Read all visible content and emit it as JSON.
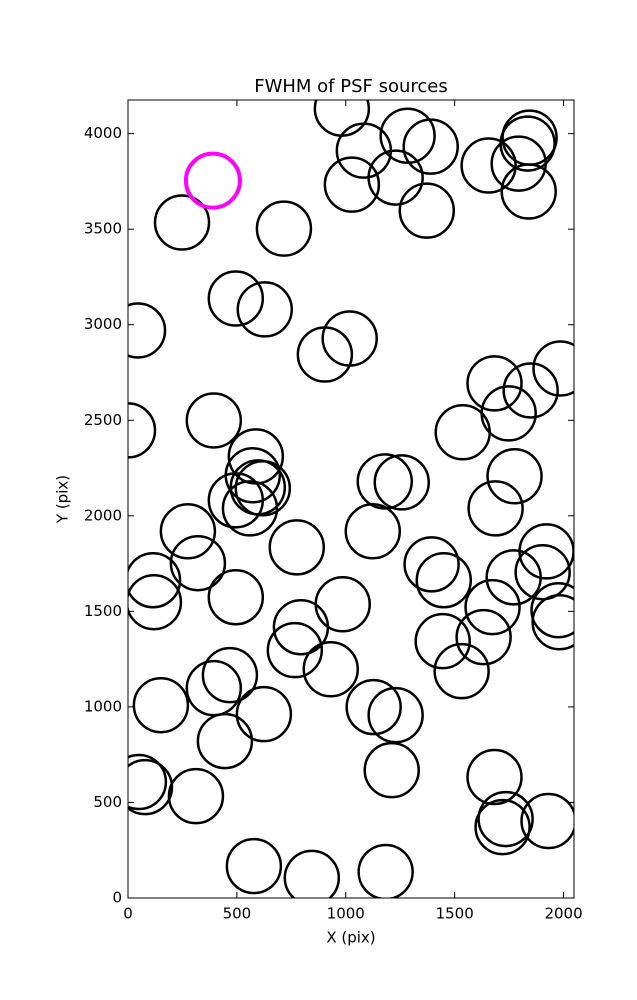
{
  "chart_data": {
    "type": "scatter",
    "title": "FWHM of PSF sources",
    "x_label": "X (pix)",
    "y_label": "Y (pix)",
    "xlim": [
      0,
      2048
    ],
    "ylim": [
      0,
      4176
    ],
    "xticks": [
      0,
      500,
      1000,
      1500,
      2000
    ],
    "yticks": [
      0,
      500,
      1000,
      1500,
      2000,
      2500,
      3000,
      3500,
      4000
    ],
    "series": [
      {
        "color": "#000000",
        "x": [
          982,
          1083,
          1284,
          1390,
          1844,
          1835,
          1656,
          1794,
          1840,
          1229,
          1028,
          1372,
          248,
          716,
          495,
          628,
          46,
          1018,
          904,
          1986,
          1683,
          1849,
          1748,
          0,
          394,
          1537,
          587,
          573,
          596,
          619,
          495,
          560,
          1775,
          1179,
          1257,
          1688,
          275,
          1124,
          775,
          115,
          321,
          119,
          495,
          1922,
          1394,
          1450,
          1771,
          1904,
          1977,
          1982,
          1674,
          986,
          794,
          766,
          1445,
          1633,
          1532,
          931,
          468,
          394,
          151,
          1128,
          1229,
          624,
          445,
          1211,
          50,
          78,
          1683,
          312,
          1734,
          1720,
          1931,
          578,
          844,
          1183
        ],
        "values": [
          4131,
          3911,
          3989,
          3932,
          3979,
          3948,
          3833,
          3843,
          3697,
          3770,
          3733,
          3597,
          3535,
          3503,
          3137,
          3080,
          2970,
          2928,
          2844,
          2771,
          2693,
          2656,
          2536,
          2447,
          2499,
          2437,
          2311,
          2212,
          2149,
          2144,
          2081,
          2039,
          2207,
          2180,
          2175,
          2039,
          1919,
          1919,
          1835,
          1663,
          1752,
          1548,
          1574,
          1814,
          1746,
          1663,
          1678,
          1705,
          1506,
          1443,
          1522,
          1537,
          1417,
          1297,
          1344,
          1365,
          1187,
          1197,
          1166,
          1098,
          1009,
          999,
          957,
          962,
          821,
          669,
          607,
          580,
          633,
          533,
          413,
          371,
          403,
          167,
          105,
          136
        ]
      },
      {
        "color": "#ff00ff",
        "x": [
          390
        ],
        "values": [
          3754
        ]
      }
    ]
  }
}
